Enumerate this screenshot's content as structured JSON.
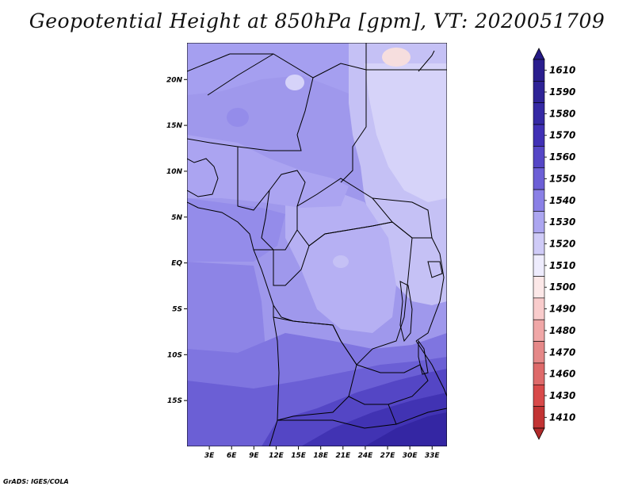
{
  "title": "Geopotential Height at 850hPa [gpm], VT: 2020051709",
  "credit": "GrADS: IGES/COLA",
  "map": {
    "lon_range": [
      0,
      35
    ],
    "lat_range": [
      -20,
      24
    ],
    "lat_ticks": [
      {
        "label": "20N",
        "value": 20
      },
      {
        "label": "15N",
        "value": 15
      },
      {
        "label": "10N",
        "value": 10
      },
      {
        "label": "5N",
        "value": 5
      },
      {
        "label": "EQ",
        "value": 0
      },
      {
        "label": "5S",
        "value": -5
      },
      {
        "label": "10S",
        "value": -10
      },
      {
        "label": "15S",
        "value": -15
      }
    ],
    "lon_ticks": [
      {
        "label": "3E",
        "value": 3
      },
      {
        "label": "6E",
        "value": 6
      },
      {
        "label": "9E",
        "value": 9
      },
      {
        "label": "12E",
        "value": 12
      },
      {
        "label": "15E",
        "value": 15
      },
      {
        "label": "18E",
        "value": 18
      },
      {
        "label": "21E",
        "value": 21
      },
      {
        "label": "24E",
        "value": 24
      },
      {
        "label": "27E",
        "value": 27
      },
      {
        "label": "30E",
        "value": 30
      },
      {
        "label": "33E",
        "value": 33
      }
    ]
  },
  "colorbar": {
    "levels": [
      {
        "label": "1610",
        "color": "#2a1e8e"
      },
      {
        "label": "1590",
        "color": "#2e2396"
      },
      {
        "label": "1580",
        "color": "#3529a4"
      },
      {
        "label": "1570",
        "color": "#4030b5"
      },
      {
        "label": "1560",
        "color": "#5546c6"
      },
      {
        "label": "1550",
        "color": "#6c5fd6"
      },
      {
        "label": "1540",
        "color": "#8a80e6"
      },
      {
        "label": "1530",
        "color": "#aca6f0"
      },
      {
        "label": "1520",
        "color": "#cfcbf7"
      },
      {
        "label": "1510",
        "color": "#eeecfd"
      },
      {
        "label": "1500",
        "color": "#fce8e8"
      },
      {
        "label": "1490",
        "color": "#f9cccc"
      },
      {
        "label": "1480",
        "color": "#f0a7a7"
      },
      {
        "label": "1470",
        "color": "#e58888"
      },
      {
        "label": "1460",
        "color": "#de6a6a"
      },
      {
        "label": "1430",
        "color": "#d84a4a"
      },
      {
        "label": "1410",
        "color": "#c23434"
      }
    ],
    "top_color": "#251a85",
    "bottom_color": "#b02a2a"
  }
}
